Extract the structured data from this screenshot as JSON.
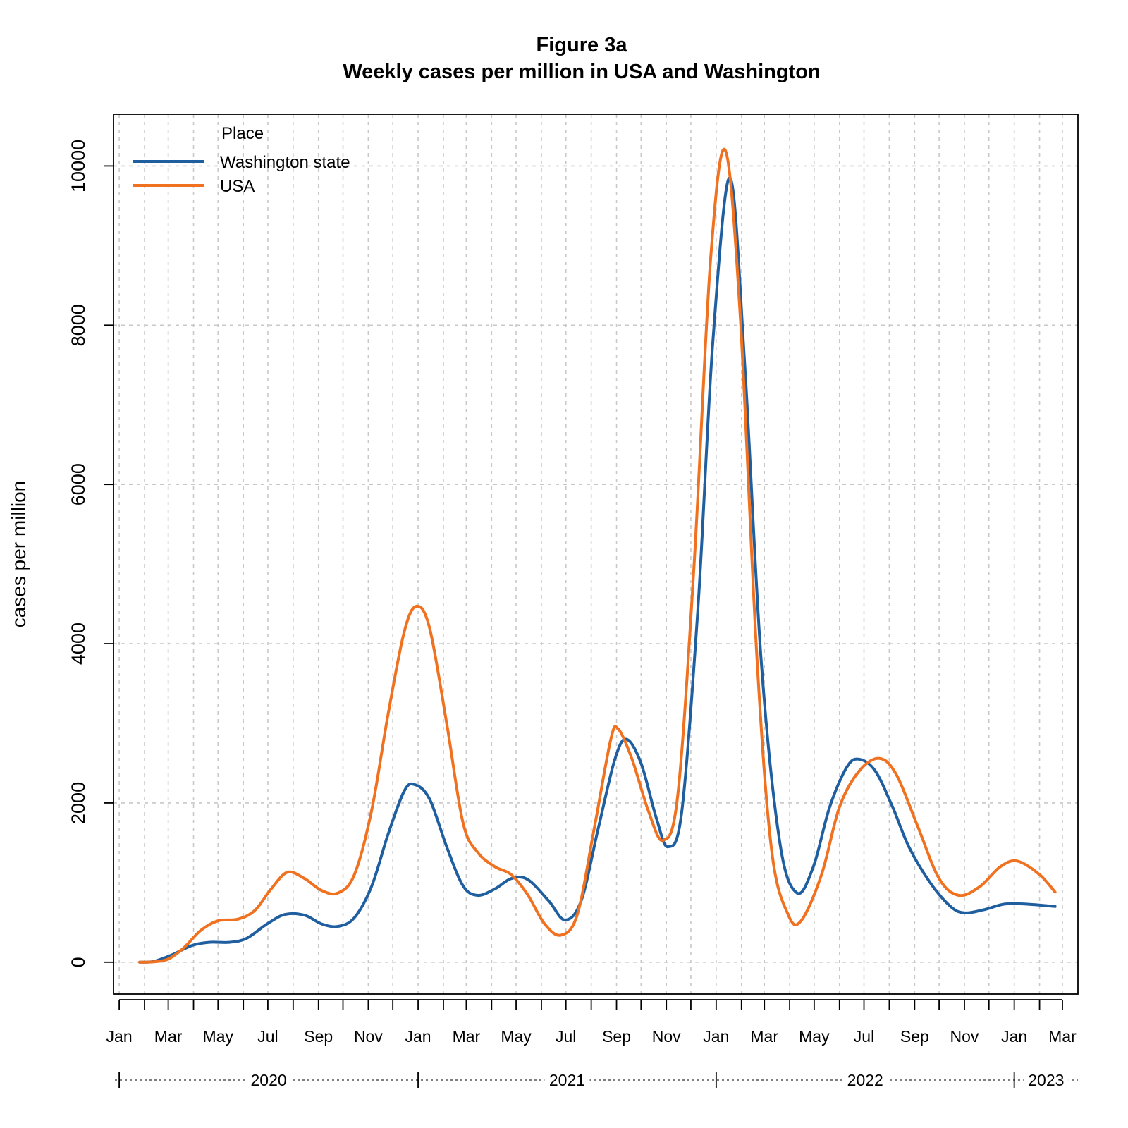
{
  "chart_data": {
    "type": "line",
    "title": "Figure 3a",
    "subtitle": "Weekly cases per million in USA and Washington",
    "ylabel": "cases per million",
    "xlabel": "",
    "ylim": [
      -400,
      10650
    ],
    "xlim": [
      "2019-12-25",
      "2023-03-20"
    ],
    "yticks": [
      0,
      2000,
      4000,
      6000,
      8000,
      10000
    ],
    "grid": true,
    "legend": {
      "title": "Place",
      "position": "top-left"
    },
    "x_tick_labels": [
      {
        "date": "2020-01-01",
        "label": "Jan"
      },
      {
        "date": "2020-03-01",
        "label": "Mar"
      },
      {
        "date": "2020-05-01",
        "label": "May"
      },
      {
        "date": "2020-07-01",
        "label": "Jul"
      },
      {
        "date": "2020-09-01",
        "label": "Sep"
      },
      {
        "date": "2020-11-01",
        "label": "Nov"
      },
      {
        "date": "2021-01-01",
        "label": "Jan"
      },
      {
        "date": "2021-03-01",
        "label": "Mar"
      },
      {
        "date": "2021-05-01",
        "label": "May"
      },
      {
        "date": "2021-07-01",
        "label": "Jul"
      },
      {
        "date": "2021-09-01",
        "label": "Sep"
      },
      {
        "date": "2021-11-01",
        "label": "Nov"
      },
      {
        "date": "2022-01-01",
        "label": "Jan"
      },
      {
        "date": "2022-03-01",
        "label": "Mar"
      },
      {
        "date": "2022-05-01",
        "label": "May"
      },
      {
        "date": "2022-07-01",
        "label": "Jul"
      },
      {
        "date": "2022-09-01",
        "label": "Sep"
      },
      {
        "date": "2022-11-01",
        "label": "Nov"
      },
      {
        "date": "2023-01-01",
        "label": "Jan"
      },
      {
        "date": "2023-03-01",
        "label": "Mar"
      }
    ],
    "x_minor_ticks": [
      "2020-02-01",
      "2020-04-01",
      "2020-06-01",
      "2020-08-01",
      "2020-10-01",
      "2020-12-01",
      "2021-02-01",
      "2021-04-01",
      "2021-06-01",
      "2021-08-01",
      "2021-10-01",
      "2021-12-01",
      "2022-02-01",
      "2022-04-01",
      "2022-06-01",
      "2022-08-01",
      "2022-10-01",
      "2022-12-01",
      "2023-02-01"
    ],
    "years": [
      {
        "label": "2020",
        "start": "2020-01-01",
        "end": "2021-01-01"
      },
      {
        "label": "2021",
        "start": "2021-01-01",
        "end": "2022-01-01"
      },
      {
        "label": "2022",
        "start": "2022-01-01",
        "end": "2023-01-01"
      },
      {
        "label": "2023",
        "start": "2023-01-01",
        "end": "2023-03-20"
      }
    ],
    "series": [
      {
        "name": "Washington state",
        "color": "#1f5fa0",
        "points": [
          [
            "2020-01-26",
            0
          ],
          [
            "2020-02-12",
            10
          ],
          [
            "2020-03-05",
            90
          ],
          [
            "2020-03-30",
            210
          ],
          [
            "2020-04-20",
            250
          ],
          [
            "2020-05-15",
            250
          ],
          [
            "2020-06-05",
            300
          ],
          [
            "2020-06-30",
            480
          ],
          [
            "2020-07-22",
            600
          ],
          [
            "2020-08-15",
            590
          ],
          [
            "2020-09-05",
            480
          ],
          [
            "2020-09-25",
            450
          ],
          [
            "2020-10-15",
            560
          ],
          [
            "2020-11-05",
            950
          ],
          [
            "2020-11-25",
            1600
          ],
          [
            "2020-12-15",
            2150
          ],
          [
            "2020-12-28",
            2230
          ],
          [
            "2021-01-15",
            2050
          ],
          [
            "2021-02-05",
            1450
          ],
          [
            "2021-02-25",
            960
          ],
          [
            "2021-03-15",
            840
          ],
          [
            "2021-04-05",
            920
          ],
          [
            "2021-04-25",
            1050
          ],
          [
            "2021-05-15",
            1040
          ],
          [
            "2021-06-10",
            770
          ],
          [
            "2021-06-30",
            530
          ],
          [
            "2021-07-20",
            780
          ],
          [
            "2021-08-10",
            1700
          ],
          [
            "2021-08-30",
            2550
          ],
          [
            "2021-09-13",
            2800
          ],
          [
            "2021-10-01",
            2500
          ],
          [
            "2021-10-20",
            1800
          ],
          [
            "2021-11-03",
            1450
          ],
          [
            "2021-11-20",
            1900
          ],
          [
            "2021-12-10",
            4500
          ],
          [
            "2021-12-28",
            7800
          ],
          [
            "2022-01-18",
            9850
          ],
          [
            "2022-02-05",
            7500
          ],
          [
            "2022-02-25",
            3800
          ],
          [
            "2022-03-20",
            1500
          ],
          [
            "2022-04-10",
            870
          ],
          [
            "2022-04-30",
            1200
          ],
          [
            "2022-05-20",
            1950
          ],
          [
            "2022-06-10",
            2450
          ],
          [
            "2022-06-25",
            2550
          ],
          [
            "2022-07-15",
            2400
          ],
          [
            "2022-08-05",
            1950
          ],
          [
            "2022-08-25",
            1450
          ],
          [
            "2022-09-20",
            1000
          ],
          [
            "2022-10-15",
            700
          ],
          [
            "2022-11-01",
            620
          ],
          [
            "2022-11-25",
            660
          ],
          [
            "2022-12-20",
            730
          ],
          [
            "2023-01-15",
            730
          ],
          [
            "2023-02-20",
            700
          ]
        ]
      },
      {
        "name": "USA",
        "color": "#f0711f",
        "points": [
          [
            "2020-01-26",
            0
          ],
          [
            "2020-02-12",
            5
          ],
          [
            "2020-03-01",
            40
          ],
          [
            "2020-03-20",
            180
          ],
          [
            "2020-04-10",
            400
          ],
          [
            "2020-05-01",
            520
          ],
          [
            "2020-05-25",
            540
          ],
          [
            "2020-06-15",
            650
          ],
          [
            "2020-07-05",
            920
          ],
          [
            "2020-07-25",
            1130
          ],
          [
            "2020-08-15",
            1050
          ],
          [
            "2020-09-05",
            900
          ],
          [
            "2020-09-25",
            870
          ],
          [
            "2020-10-15",
            1100
          ],
          [
            "2020-11-05",
            1900
          ],
          [
            "2020-11-25",
            3100
          ],
          [
            "2020-12-15",
            4150
          ],
          [
            "2020-12-30",
            4470
          ],
          [
            "2021-01-15",
            4200
          ],
          [
            "2021-02-05",
            3000
          ],
          [
            "2021-02-25",
            1750
          ],
          [
            "2021-03-15",
            1380
          ],
          [
            "2021-04-05",
            1200
          ],
          [
            "2021-04-25",
            1100
          ],
          [
            "2021-05-15",
            850
          ],
          [
            "2021-06-05",
            480
          ],
          [
            "2021-06-25",
            340
          ],
          [
            "2021-07-15",
            600
          ],
          [
            "2021-08-05",
            1700
          ],
          [
            "2021-08-25",
            2800
          ],
          [
            "2021-09-03",
            2930
          ],
          [
            "2021-09-20",
            2550
          ],
          [
            "2021-10-10",
            1900
          ],
          [
            "2021-10-28",
            1530
          ],
          [
            "2021-11-15",
            2100
          ],
          [
            "2021-12-05",
            5000
          ],
          [
            "2021-12-25",
            8800
          ],
          [
            "2022-01-12",
            10200
          ],
          [
            "2022-01-30",
            8200
          ],
          [
            "2022-02-20",
            3800
          ],
          [
            "2022-03-10",
            1400
          ],
          [
            "2022-03-30",
            600
          ],
          [
            "2022-04-15",
            520
          ],
          [
            "2022-05-10",
            1100
          ],
          [
            "2022-06-01",
            1950
          ],
          [
            "2022-06-25",
            2400
          ],
          [
            "2022-07-20",
            2560
          ],
          [
            "2022-08-10",
            2350
          ],
          [
            "2022-09-05",
            1700
          ],
          [
            "2022-10-01",
            1050
          ],
          [
            "2022-10-25",
            840
          ],
          [
            "2022-11-20",
            950
          ],
          [
            "2022-12-15",
            1200
          ],
          [
            "2023-01-05",
            1270
          ],
          [
            "2023-02-01",
            1100
          ],
          [
            "2023-02-20",
            880
          ]
        ]
      }
    ]
  }
}
